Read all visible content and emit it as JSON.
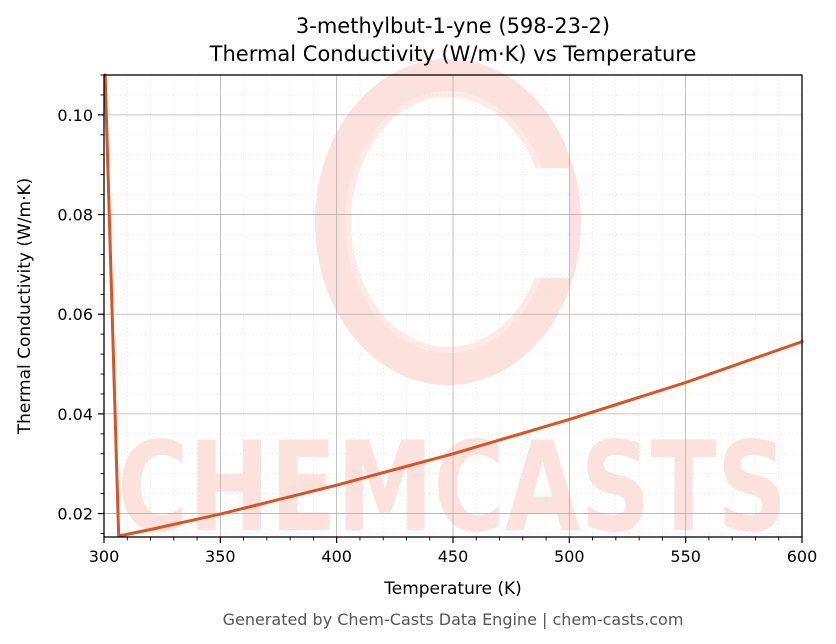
{
  "chart_data": {
    "type": "line",
    "title": "3-methylbut-1-yne (598-23-2)",
    "subtitle": "Thermal Conductivity (W/m·K) vs Temperature",
    "xlabel": "Temperature (K)",
    "ylabel": "Thermal Conductivity (W/m·K)",
    "xlim": [
      300,
      600
    ],
    "ylim": [
      0.0153,
      0.108
    ],
    "x_ticks": [
      300,
      350,
      400,
      450,
      500,
      550,
      600
    ],
    "y_ticks": [
      0.02,
      0.04,
      0.06,
      0.08,
      0.1
    ],
    "x_tick_labels": [
      "300",
      "350",
      "400",
      "450",
      "500",
      "550",
      "600"
    ],
    "y_tick_labels": [
      "0.02",
      "0.04",
      "0.06",
      "0.08",
      "0.10"
    ],
    "grid": true,
    "series": [
      {
        "color": "#d95323",
        "x": [
          300.5,
          306.3,
          320,
          350,
          400,
          450,
          500,
          550,
          600
        ],
        "y": [
          0.108,
          0.0155,
          0.0168,
          0.0199,
          0.0257,
          0.032,
          0.0389,
          0.0463,
          0.0545
        ]
      }
    ]
  },
  "watermark": {
    "text": "CHEMCASTS",
    "color": "#fde1dc"
  },
  "footer": {
    "text": "Generated by Chem-Casts Data Engine | chem-casts.com"
  },
  "colors": {
    "major_grid": "#b0b0b0",
    "minor_grid": "#e6e6e6",
    "axis": "#000000"
  }
}
